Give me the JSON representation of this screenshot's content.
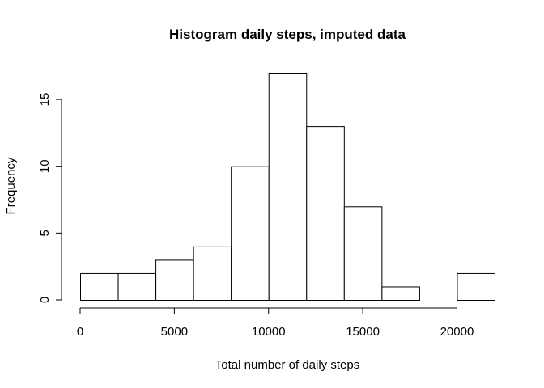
{
  "chart_data": {
    "type": "bar",
    "title": "Histogram daily steps, imputed data",
    "xlabel": "Total number of daily steps",
    "ylabel": "Frequency",
    "bin_edges": [
      0,
      2000,
      4000,
      6000,
      8000,
      10000,
      12000,
      14000,
      16000,
      18000,
      20000,
      22000
    ],
    "values": [
      2,
      2,
      3,
      4,
      10,
      17,
      13,
      7,
      1,
      0,
      2
    ],
    "xlim": [
      0,
      22000
    ],
    "ylim": [
      0,
      17
    ],
    "x_ticks": [
      0,
      5000,
      10000,
      15000,
      20000
    ],
    "x_tick_labels": [
      "0",
      "5000",
      "10000",
      "15000",
      "20000"
    ],
    "y_ticks": [
      0,
      5,
      10,
      15
    ],
    "y_tick_labels": [
      "0",
      "5",
      "10",
      "15"
    ],
    "grid": false,
    "bar_fill": "#ffffff",
    "bar_stroke": "#000000"
  }
}
